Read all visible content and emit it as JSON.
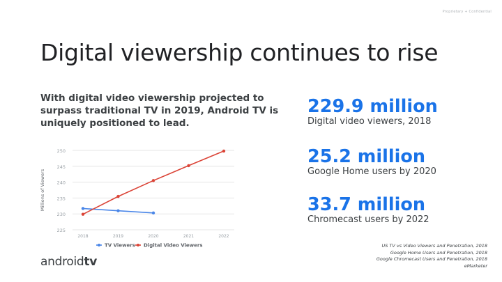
{
  "header": {
    "confidential": "Proprietary + Confidential"
  },
  "title": "Digital viewership continues to rise",
  "intro": "With digital video viewership projected to surpass traditional TV in 2019, Android TV is uniquely positioned to lead.",
  "stats": [
    {
      "value": "229.9 million",
      "label": "Digital video viewers, 2018"
    },
    {
      "value": "25.2 million",
      "label": "Google Home users by 2020"
    },
    {
      "value": "33.7 million",
      "label": "Chromecast users by 2022"
    }
  ],
  "sources": [
    "US TV vs Video Viewers and Penetration, 2018",
    "Google Home Users and Penetration, 2018",
    "Google Chromecast Users and Penetration, 2018",
    "eMarketer"
  ],
  "logo": {
    "part1": "android",
    "part2": "tv"
  },
  "colors": {
    "accent": "#1a73e8",
    "tv_series": "#4a86e8",
    "digital_series": "#db4437",
    "grid": "#e6e6e6"
  },
  "chart_data": {
    "type": "line",
    "title": "",
    "xlabel": "",
    "ylabel": "Millions of Viewers",
    "categories": [
      "2018",
      "2019",
      "2020",
      "2021",
      "2022"
    ],
    "yticks": [
      225,
      230,
      235,
      240,
      245,
      250
    ],
    "ylim": [
      225,
      250
    ],
    "grid": true,
    "legend": "bottom",
    "series": [
      {
        "name": "TV Viewers",
        "color": "#4a86e8",
        "values": [
          231.7,
          231.0,
          230.3,
          null,
          null
        ]
      },
      {
        "name": "Digital Video Viewers",
        "color": "#db4437",
        "values": [
          229.9,
          235.5,
          240.5,
          245.2,
          249.8
        ]
      }
    ]
  }
}
